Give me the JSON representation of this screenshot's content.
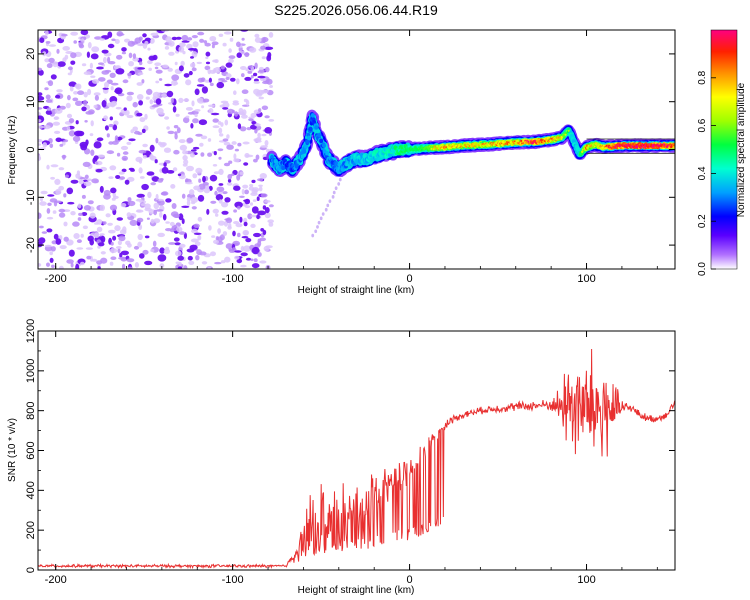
{
  "title": "S225.2026.056.06.44.R19",
  "colors": {
    "snr_line": "#e83030",
    "noise_dots": "#8a3ff0",
    "colorbar_stops": [
      "#ffffff",
      "#b070ff",
      "#5a00ff",
      "#0000ff",
      "#00a0ff",
      "#00ffd0",
      "#00ff40",
      "#a0ff00",
      "#ffff00",
      "#ff9000",
      "#ff2000",
      "#ff0080"
    ]
  },
  "chart_data": [
    {
      "type": "heatmap",
      "name": "spectrogram",
      "xlabel": "Height of straight line (km)",
      "ylabel": "Frequency (Hz)",
      "xlim": [
        -210,
        150
      ],
      "ylim": [
        -25,
        25
      ],
      "xticks": [
        -200,
        -100,
        0,
        100
      ],
      "yticks": [
        -20,
        -10,
        0,
        10,
        20
      ],
      "noise_region_x": [
        -210,
        -78
      ],
      "ridge": {
        "x": [
          -78,
          -74,
          -70,
          -66,
          -62,
          -58,
          -55,
          -52,
          -49,
          -46,
          -43,
          -40,
          -36,
          -30,
          -24,
          -18,
          -12,
          -6,
          0,
          10,
          20,
          30,
          40,
          50,
          60,
          70,
          80,
          86,
          90,
          93,
          96,
          100,
          105,
          110,
          120,
          130,
          140,
          150
        ],
        "y": [
          -2,
          -4,
          -3,
          -4,
          -2,
          1,
          7,
          3,
          1,
          -2,
          -3,
          -4,
          -3,
          -2,
          -2,
          -1,
          -0.5,
          0,
          0,
          0.3,
          0.5,
          0.8,
          1,
          1.2,
          1.5,
          1.6,
          2,
          2.5,
          4,
          1.5,
          -1,
          0.5,
          1,
          0.5,
          0.8,
          0.8,
          0.8,
          0.8
        ],
        "amplitude": [
          0.3,
          0.35,
          0.3,
          0.3,
          0.35,
          0.35,
          0.3,
          0.35,
          0.3,
          0.35,
          0.3,
          0.35,
          0.35,
          0.4,
          0.4,
          0.45,
          0.45,
          0.5,
          0.5,
          0.55,
          0.7,
          0.65,
          0.65,
          0.7,
          0.7,
          0.85,
          0.7,
          0.6,
          0.5,
          0.4,
          0.45,
          0.7,
          0.6,
          0.75,
          0.9,
          0.9,
          0.9,
          0.85
        ]
      },
      "colorbar": {
        "label": "Normalized spectral amplitude",
        "range": [
          0,
          1
        ],
        "ticks": [
          "0.0",
          "0.2",
          "0.4",
          "0.6",
          "0.8"
        ],
        "tick_values": [
          0.0,
          0.2,
          0.4,
          0.6,
          0.8
        ]
      }
    },
    {
      "type": "line",
      "name": "snr",
      "xlabel": "Height of straight line (km)",
      "ylabel": "SNR (10 * v/v)",
      "xlim": [
        -210,
        150
      ],
      "ylim": [
        0,
        1200
      ],
      "xticks": [
        -200,
        -100,
        0,
        100
      ],
      "yticks": [
        0,
        200,
        400,
        600,
        800,
        1000,
        1200
      ],
      "series": [
        {
          "name": "SNR",
          "x": [
            -210,
            -150,
            -100,
            -70,
            -64,
            -60,
            -55,
            -50,
            -45,
            -40,
            -35,
            -30,
            -25,
            -20,
            -15,
            -10,
            -5,
            0,
            5,
            10,
            15,
            20,
            25,
            30,
            40,
            50,
            60,
            70,
            80,
            85,
            90,
            95,
            100,
            105,
            110,
            115,
            120,
            125,
            130,
            135,
            140,
            145,
            150
          ],
          "values": [
            20,
            20,
            20,
            20,
            90,
            180,
            250,
            280,
            250,
            280,
            300,
            330,
            340,
            380,
            410,
            440,
            470,
            500,
            560,
            620,
            680,
            730,
            760,
            780,
            800,
            810,
            820,
            825,
            830,
            820,
            840,
            830,
            800,
            810,
            800,
            800,
            810,
            815,
            780,
            760,
            760,
            780,
            840
          ],
          "noise_amplitude": [
            8,
            8,
            8,
            8,
            30,
            120,
            220,
            180,
            160,
            170,
            150,
            140,
            140,
            130,
            110,
            90,
            80,
            60,
            50,
            40,
            30,
            25,
            20,
            20,
            20,
            20,
            25,
            25,
            30,
            100,
            250,
            300,
            300,
            320,
            300,
            150,
            60,
            20,
            20,
            20,
            20,
            20,
            20
          ]
        }
      ]
    }
  ]
}
